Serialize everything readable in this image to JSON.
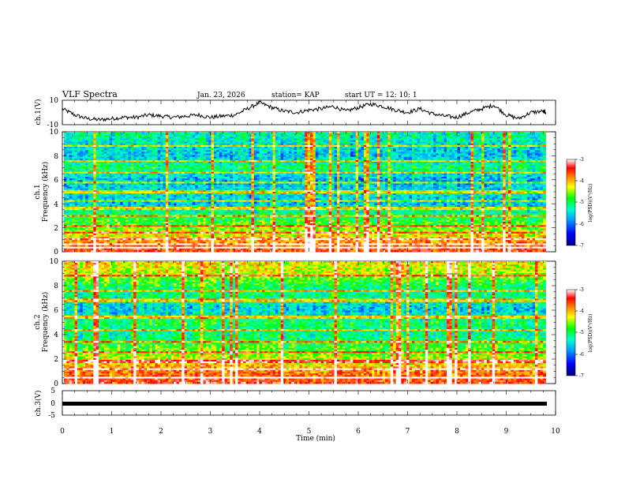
{
  "header": {
    "title": "VLF Spectra",
    "date": "Jan. 23, 2026",
    "station": "station= KAP",
    "start_ut": "start  UT  =   12: 10: 1"
  },
  "colors": {
    "background": "#ffffff",
    "trace": "#000000",
    "colormap": [
      "#000080",
      "#0000ff",
      "#00a0ff",
      "#00ffcc",
      "#00ff00",
      "#ffff00",
      "#ff8000",
      "#ff0000",
      "#ffffff"
    ]
  },
  "chart_data": [
    {
      "id": "ch1-waveform",
      "type": "line",
      "ylabel": "ch.1(V)",
      "ylim": [
        -10,
        10
      ],
      "ytick_labels": [
        "10",
        "-10"
      ],
      "xlim": [
        0,
        10
      ],
      "x": [
        0,
        0.25,
        0.5,
        0.75,
        1,
        1.25,
        1.5,
        1.75,
        2,
        2.25,
        2.5,
        2.75,
        3,
        3.25,
        3.5,
        3.75,
        4,
        4.25,
        4.5,
        4.75,
        5,
        5.25,
        5.5,
        5.75,
        6,
        6.25,
        6.5,
        6.75,
        7,
        7.25,
        7.5,
        7.75,
        8,
        8.25,
        8.5,
        8.75,
        9,
        9.25,
        9.5,
        9.75,
        9.8
      ],
      "y": [
        3,
        -2,
        -5,
        -6,
        -5,
        -4,
        -4,
        -2,
        -3,
        -4,
        -3,
        -2,
        -4,
        -3,
        -2,
        3,
        8,
        4,
        1,
        0,
        2,
        3,
        5,
        1,
        4,
        7,
        5,
        2,
        0,
        3,
        -1,
        -3,
        -4,
        0,
        3,
        6,
        -2,
        -5,
        0,
        1,
        0
      ]
    },
    {
      "id": "ch1-spectrogram",
      "type": "heatmap",
      "ylabel": "ch.1 Frequency (kHz)",
      "ylabel_line1": "ch.1",
      "ylabel_line2": "Frequency (kHz)",
      "ylim": [
        0,
        10
      ],
      "ytick_labels": [
        "0",
        "2",
        "4",
        "6",
        "8",
        "10"
      ],
      "xlim": [
        0,
        9.8
      ],
      "colorbar": {
        "range": [
          -7,
          -3
        ],
        "tick_labels": [
          "-3",
          "-4",
          "-5",
          "-6",
          "-7"
        ],
        "label": "log(PSD)(V²/Hz)"
      },
      "bands_khz": [
        0.3,
        0.6,
        1.0,
        1.6,
        2.2,
        3.0,
        3.6,
        4.2,
        5.0,
        5.8,
        6.6,
        7.6,
        8.8
      ],
      "intensity_profile": {
        "freq_khz": [
          0,
          1,
          2,
          3,
          4,
          5,
          6,
          7,
          8,
          9,
          10
        ],
        "level": [
          0.85,
          0.7,
          0.55,
          0.45,
          0.3,
          0.35,
          0.28,
          0.45,
          0.3,
          0.35,
          0.4
        ]
      }
    },
    {
      "id": "ch2-spectrogram",
      "type": "heatmap",
      "ylabel": "ch.2 Frequency (kHz)",
      "ylabel_line1": "ch.2",
      "ylabel_line2": "Frequency (kHz)",
      "ylim": [
        0,
        10
      ],
      "ytick_labels": [
        "0",
        "2",
        "4",
        "6",
        "8",
        "10"
      ],
      "xlim": [
        0,
        9.8
      ],
      "colorbar": {
        "range": [
          -7,
          -3
        ],
        "tick_labels": [
          "-3",
          "-4",
          "-5",
          "-6",
          "-7"
        ],
        "label": "log(PSD)(V²/Hz)"
      },
      "bands_khz": [
        0.5,
        1.2,
        1.8,
        2.6,
        3.4,
        4.4,
        5.4,
        6.8,
        7.6,
        8.8
      ],
      "intensity_profile": {
        "freq_khz": [
          0,
          1,
          2,
          3,
          4,
          5,
          6,
          7,
          8,
          9,
          10
        ],
        "level": [
          0.85,
          0.75,
          0.6,
          0.5,
          0.4,
          0.45,
          0.3,
          0.4,
          0.45,
          0.6,
          0.65
        ]
      }
    },
    {
      "id": "ch3-waveform",
      "type": "line",
      "ylabel": "ch.3(V)",
      "ylim": [
        -5,
        5
      ],
      "ytick_labels": [
        "5",
        "0",
        "-5"
      ],
      "xlim": [
        0,
        10
      ],
      "x": [
        0,
        9.8
      ],
      "y": [
        0,
        0
      ]
    }
  ],
  "time_axis": {
    "xlabel": "Time  (min)",
    "range": [
      0,
      10
    ],
    "tick_labels": [
      "0",
      "1",
      "2",
      "3",
      "4",
      "5",
      "6",
      "7",
      "8",
      "9",
      "10"
    ]
  }
}
